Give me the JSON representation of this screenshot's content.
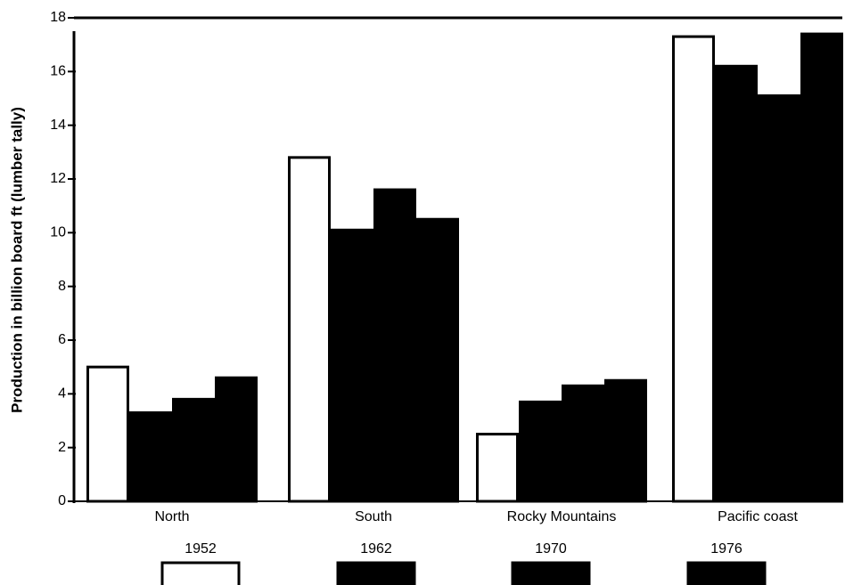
{
  "chart_data": {
    "type": "bar",
    "ylabel": "Production in billion board ft (lumber tally)",
    "categories": [
      "North",
      "South",
      "Rocky  Mountains",
      "Pacific  coast"
    ],
    "series": [
      {
        "name": "1952",
        "color": "#ffffff",
        "values": [
          5.0,
          12.8,
          2.5,
          17.3
        ]
      },
      {
        "name": "1962",
        "color": "#000000",
        "values": [
          3.3,
          10.1,
          3.7,
          16.2
        ]
      },
      {
        "name": "1970",
        "color": "#000000",
        "values": [
          3.8,
          11.6,
          4.3,
          15.1
        ]
      },
      {
        "name": "1976",
        "color": "#000000",
        "values": [
          4.6,
          10.5,
          4.5,
          17.4
        ]
      }
    ],
    "edgecolor": "#000000",
    "ylim": [
      0,
      18
    ],
    "yticks": [
      0,
      2,
      4,
      6,
      8,
      10,
      12,
      14,
      16,
      18
    ],
    "legend": "bottom"
  }
}
